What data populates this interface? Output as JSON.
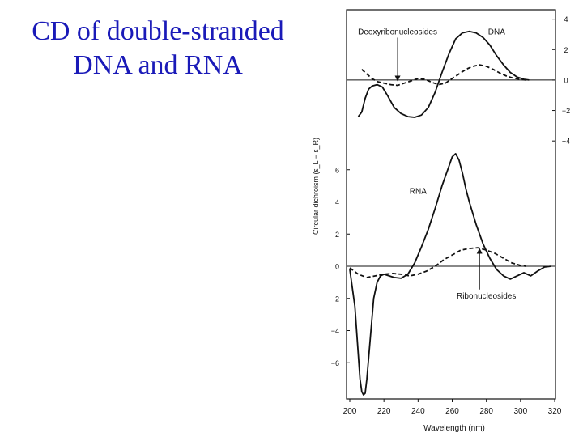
{
  "slide": {
    "title_line1": "CD of double-stranded",
    "title_line2": "DNA and RNA"
  },
  "chart_data": {
    "type": "line",
    "xlabel": "Wavelength (nm)",
    "ylabel": "Circular dichroism (ε_L − ε_R)",
    "x_ticks": [
      200,
      220,
      240,
      260,
      280,
      300,
      320
    ],
    "xlim": [
      200,
      320
    ],
    "panels": [
      {
        "name": "dna-panel",
        "ylim": [
          -5,
          4.3
        ],
        "y_ticks": [
          4,
          2,
          0,
          -2,
          -4
        ],
        "y_tick_labels": [
          "4",
          "2",
          "0",
          "−2",
          "−4"
        ],
        "y_axis_side": "right",
        "series": [
          {
            "name": "DNA",
            "style": "solid",
            "x": [
              205,
              207,
              209,
              211,
              213,
              216,
              219,
              222,
              226,
              230,
              234,
              238,
              242,
              246,
              250,
              254,
              258,
              262,
              266,
              270,
              274,
              278,
              282,
              286,
              290,
              294,
              298,
              302,
              305
            ],
            "y": [
              -2.4,
              -2.1,
              -1.2,
              -0.6,
              -0.4,
              -0.3,
              -0.45,
              -1.0,
              -1.8,
              -2.2,
              -2.4,
              -2.45,
              -2.3,
              -1.8,
              -0.8,
              0.5,
              1.7,
              2.7,
              3.1,
              3.2,
              3.1,
              2.8,
              2.3,
              1.6,
              1.0,
              0.5,
              0.2,
              0.05,
              0.0
            ]
          },
          {
            "name": "Deoxyribonucleosides",
            "style": "dashed",
            "x": [
              207,
              210,
              213,
              216,
              220,
              224,
              228,
              232,
              236,
              240,
              244,
              248,
              252,
              256,
              260,
              264,
              268,
              272,
              276,
              280,
              284,
              288,
              292,
              296,
              300,
              303
            ],
            "y": [
              0.7,
              0.4,
              0.1,
              -0.1,
              -0.2,
              -0.3,
              -0.35,
              -0.2,
              -0.05,
              0.1,
              0.05,
              -0.15,
              -0.3,
              -0.2,
              0.1,
              0.4,
              0.7,
              0.9,
              1.0,
              0.9,
              0.7,
              0.45,
              0.25,
              0.12,
              0.05,
              0.0
            ]
          }
        ],
        "annotations": [
          {
            "text": "Deoxyribonucleosides",
            "x": 228,
            "y": 3.0,
            "arrow_to": [
              228,
              -0.05
            ]
          },
          {
            "text": "DNA",
            "x": 286,
            "y": 3.0
          }
        ]
      },
      {
        "name": "rna-panel",
        "ylim": [
          -8,
          8
        ],
        "y_ticks": [
          6,
          4,
          2,
          0,
          -2,
          -4,
          -6
        ],
        "y_tick_labels": [
          "6",
          "4",
          "2",
          "0",
          "−2",
          "−4",
          "−6"
        ],
        "y_axis_side": "left",
        "series": [
          {
            "name": "RNA",
            "style": "solid",
            "x": [
              200,
              203,
              205,
              206,
              207,
              208,
              209,
              210,
              212,
              214,
              216,
              218,
              220,
              223,
              226,
              230,
              234,
              238,
              242,
              246,
              250,
              254,
              258,
              260,
              262,
              264,
              266,
              268,
              270,
              274,
              278,
              282,
              286,
              290,
              294,
              298,
              302,
              306,
              310,
              314,
              318
            ],
            "y": [
              -0.2,
              -2.5,
              -5.5,
              -7.0,
              -7.8,
              -8.0,
              -7.9,
              -7.0,
              -4.5,
              -2.0,
              -1.0,
              -0.6,
              -0.5,
              -0.6,
              -0.7,
              -0.75,
              -0.5,
              0.2,
              1.2,
              2.3,
              3.6,
              5.0,
              6.2,
              6.8,
              7.0,
              6.6,
              5.8,
              4.8,
              4.0,
              2.6,
              1.4,
              0.5,
              -0.2,
              -0.6,
              -0.8,
              -0.6,
              -0.4,
              -0.6,
              -0.3,
              -0.05,
              0.0
            ]
          },
          {
            "name": "Ribonucleosides",
            "style": "dashed",
            "x": [
              200,
              205,
              210,
              215,
              220,
              225,
              230,
              235,
              240,
              245,
              250,
              255,
              260,
              265,
              270,
              275,
              280,
              285,
              290,
              295,
              300,
              303
            ],
            "y": [
              -0.1,
              -0.5,
              -0.7,
              -0.6,
              -0.5,
              -0.45,
              -0.5,
              -0.6,
              -0.5,
              -0.3,
              0.0,
              0.4,
              0.7,
              1.0,
              1.1,
              1.15,
              1.0,
              0.8,
              0.5,
              0.2,
              0.05,
              0.0
            ]
          }
        ],
        "annotations": [
          {
            "text": "RNA",
            "x": 240,
            "y": 4.5
          },
          {
            "text": "Ribonucleosides",
            "x": 280,
            "y": -2.0,
            "arrow_to": [
              276,
              1.1
            ]
          }
        ]
      }
    ]
  }
}
